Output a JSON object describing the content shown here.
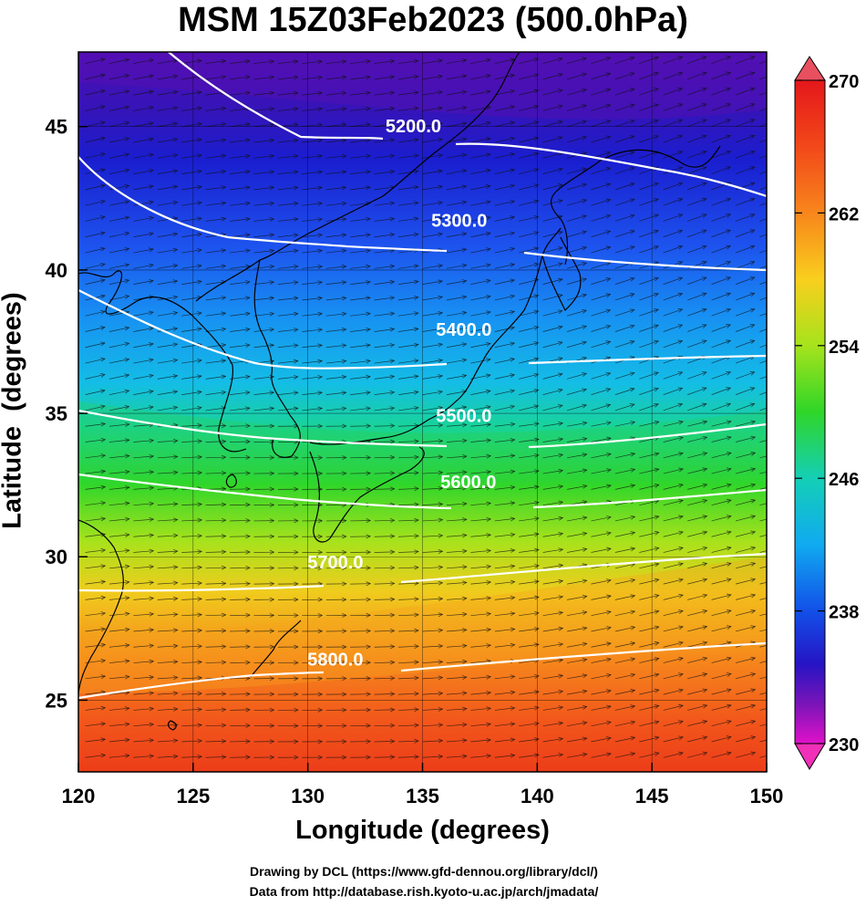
{
  "title": "MSM 15Z03Feb2023 (500.0hPa)",
  "xlabel": "Longitude (degrees)",
  "ylabel": "Latitude  (degrees)",
  "credits": {
    "line1": "Drawing by DCL (https://www.gfd-dennou.org/library/dcl/)",
    "line2": "Data from http://database.rish.kyoto-u.ac.jp/arch/jmadata/"
  },
  "map": {
    "lon_range": [
      120,
      150
    ],
    "lat_range": [
      22.5,
      47.6
    ],
    "x_ticks": [
      "120",
      "125",
      "130",
      "135",
      "140",
      "145",
      "150"
    ],
    "y_ticks": [
      "25",
      "30",
      "35",
      "40",
      "45"
    ],
    "fill_variable_range": [
      230,
      270
    ],
    "contours": [
      {
        "label": "5200.0",
        "label_at": [
          134.6,
          44.8
        ]
      },
      {
        "label": "5300.0",
        "label_at": [
          136.6,
          41.5
        ]
      },
      {
        "label": "5400.0",
        "label_at": [
          136.8,
          37.7
        ]
      },
      {
        "label": "5500.0",
        "label_at": [
          136.8,
          34.7
        ]
      },
      {
        "label": "5600.0",
        "label_at": [
          137.0,
          32.4
        ]
      },
      {
        "label": "5700.0",
        "label_at": [
          131.2,
          29.6
        ]
      },
      {
        "label": "5800.0",
        "label_at": [
          131.2,
          26.2
        ]
      }
    ]
  },
  "colorbar": {
    "range": [
      230,
      270
    ],
    "tick_labels": [
      "270",
      "262",
      "254",
      "246",
      "238",
      "230"
    ],
    "colors_top_to_bottom": [
      "#e4171b",
      "#f2571a",
      "#f9931c",
      "#f9d21d",
      "#c8e91c",
      "#4fd81f",
      "#16d36a",
      "#12d0c0",
      "#10b0f0",
      "#1365f0",
      "#1217d2",
      "#3a12b8",
      "#8214b8",
      "#d214c8",
      "#f012c8"
    ]
  }
}
